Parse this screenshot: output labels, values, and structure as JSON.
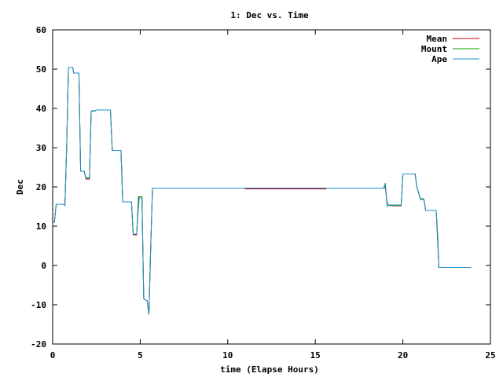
{
  "chart_data": {
    "type": "line",
    "title": "1: Dec vs. Time",
    "xlabel": "time (Elapse Hours)",
    "ylabel": "Dec",
    "xlim": [
      0,
      25
    ],
    "ylim": [
      -20,
      60
    ],
    "xticks": [
      0,
      5,
      10,
      15,
      20,
      25
    ],
    "yticks": [
      -20,
      -10,
      0,
      10,
      20,
      30,
      40,
      50,
      60
    ],
    "grid": false,
    "legend_position": "top-right",
    "series": [
      {
        "name": "Mean",
        "color": "#cc0000",
        "points": [
          [
            0,
            11
          ],
          [
            0.1,
            11
          ],
          [
            0.2,
            15.6
          ],
          [
            0.6,
            15.6
          ],
          [
            0.7,
            15.3
          ],
          [
            0.8,
            30
          ],
          [
            0.9,
            50.4
          ],
          [
            1.15,
            50.4
          ],
          [
            1.2,
            49
          ],
          [
            1.5,
            49
          ],
          [
            1.6,
            24
          ],
          [
            1.8,
            24
          ],
          [
            1.9,
            22
          ],
          [
            2.1,
            22
          ],
          [
            2.2,
            39.3
          ],
          [
            2.4,
            39.3
          ],
          [
            2.5,
            39.6
          ],
          [
            3.3,
            39.6
          ],
          [
            3.4,
            29.3
          ],
          [
            3.9,
            29.3
          ],
          [
            4.0,
            16.2
          ],
          [
            4.5,
            16.2
          ],
          [
            4.6,
            7.8
          ],
          [
            4.8,
            7.8
          ],
          [
            4.9,
            17.5
          ],
          [
            5.1,
            17.5
          ],
          [
            5.15,
            5
          ],
          [
            5.2,
            -8.5
          ],
          [
            5.4,
            -9
          ],
          [
            5.5,
            -12.5
          ],
          [
            5.6,
            5
          ],
          [
            5.7,
            19.7
          ],
          [
            10.95,
            19.7
          ],
          [
            11,
            19.5
          ],
          [
            15.6,
            19.5
          ],
          [
            15.65,
            19.7
          ],
          [
            18.9,
            19.7
          ],
          [
            19.0,
            19.8
          ],
          [
            19.1,
            16
          ],
          [
            19.2,
            15.3
          ],
          [
            19.4,
            15.2
          ],
          [
            19.9,
            15.2
          ],
          [
            20.0,
            23.3
          ],
          [
            20.7,
            23.3
          ],
          [
            20.8,
            20
          ],
          [
            21.0,
            17
          ],
          [
            21.2,
            17
          ],
          [
            21.3,
            14
          ],
          [
            21.9,
            14
          ],
          [
            22.0,
            5
          ],
          [
            22.05,
            -0.5
          ],
          [
            23.9,
            -0.5
          ]
        ]
      },
      {
        "name": "Mount",
        "color": "#00a000",
        "points": [
          [
            0,
            11
          ],
          [
            0.1,
            11
          ],
          [
            0.2,
            15.6
          ],
          [
            0.6,
            15.6
          ],
          [
            0.7,
            15.3
          ],
          [
            0.8,
            30
          ],
          [
            0.9,
            50.4
          ],
          [
            1.15,
            50.4
          ],
          [
            1.2,
            49
          ],
          [
            1.5,
            49
          ],
          [
            1.6,
            24
          ],
          [
            1.8,
            24
          ],
          [
            1.9,
            22.3
          ],
          [
            2.1,
            22.3
          ],
          [
            2.2,
            39.3
          ],
          [
            2.4,
            39.3
          ],
          [
            2.5,
            39.6
          ],
          [
            3.3,
            39.6
          ],
          [
            3.4,
            29.3
          ],
          [
            3.9,
            29.3
          ],
          [
            3.95,
            24
          ],
          [
            4.0,
            16.2
          ],
          [
            4.5,
            16.2
          ],
          [
            4.6,
            8
          ],
          [
            4.8,
            8
          ],
          [
            4.85,
            12
          ],
          [
            4.95,
            17.5
          ],
          [
            5.1,
            17.5
          ],
          [
            5.15,
            5
          ],
          [
            5.2,
            -8.5
          ],
          [
            5.4,
            -9
          ],
          [
            5.5,
            -12.5
          ],
          [
            5.6,
            5
          ],
          [
            5.7,
            19.7
          ],
          [
            18.9,
            19.7
          ],
          [
            19.0,
            20.5
          ],
          [
            19.1,
            16
          ],
          [
            19.2,
            15.3
          ],
          [
            19.4,
            15.3
          ],
          [
            19.9,
            15.3
          ],
          [
            20.0,
            23.3
          ],
          [
            20.7,
            23.3
          ],
          [
            20.8,
            20
          ],
          [
            21.0,
            16.8
          ],
          [
            21.2,
            16.8
          ],
          [
            21.3,
            14
          ],
          [
            21.9,
            14
          ],
          [
            21.95,
            11
          ],
          [
            22.05,
            -0.5
          ],
          [
            23.9,
            -0.5
          ]
        ]
      },
      {
        "name": "Ape",
        "color": "#1f8fd0",
        "points": [
          [
            0,
            11
          ],
          [
            0.1,
            11
          ],
          [
            0.2,
            15.6
          ],
          [
            0.6,
            15.6
          ],
          [
            0.7,
            15.3
          ],
          [
            0.8,
            30
          ],
          [
            0.9,
            50.4
          ],
          [
            1.15,
            50.4
          ],
          [
            1.2,
            49
          ],
          [
            1.5,
            49
          ],
          [
            1.6,
            24
          ],
          [
            1.8,
            24
          ],
          [
            1.9,
            22.2
          ],
          [
            2.1,
            22.2
          ],
          [
            2.2,
            39.4
          ],
          [
            2.4,
            39.4
          ],
          [
            2.5,
            39.6
          ],
          [
            3.3,
            39.6
          ],
          [
            3.4,
            29.3
          ],
          [
            3.9,
            29.3
          ],
          [
            3.95,
            23
          ],
          [
            4.0,
            16.2
          ],
          [
            4.5,
            16.2
          ],
          [
            4.6,
            8
          ],
          [
            4.8,
            8
          ],
          [
            4.9,
            17.2
          ],
          [
            5.1,
            17.2
          ],
          [
            5.15,
            5
          ],
          [
            5.2,
            -8.5
          ],
          [
            5.4,
            -9
          ],
          [
            5.5,
            -12.5
          ],
          [
            5.6,
            5
          ],
          [
            5.7,
            19.7
          ],
          [
            18.9,
            19.7
          ],
          [
            19.0,
            21
          ],
          [
            19.1,
            15
          ],
          [
            19.2,
            15.4
          ],
          [
            19.4,
            15.4
          ],
          [
            19.9,
            15.4
          ],
          [
            20.0,
            23.3
          ],
          [
            20.7,
            23.3
          ],
          [
            20.8,
            20
          ],
          [
            21.0,
            17
          ],
          [
            21.2,
            17
          ],
          [
            21.3,
            14
          ],
          [
            21.9,
            14
          ],
          [
            22.0,
            7
          ],
          [
            22.05,
            -0.5
          ],
          [
            23.9,
            -0.5
          ]
        ]
      }
    ]
  }
}
